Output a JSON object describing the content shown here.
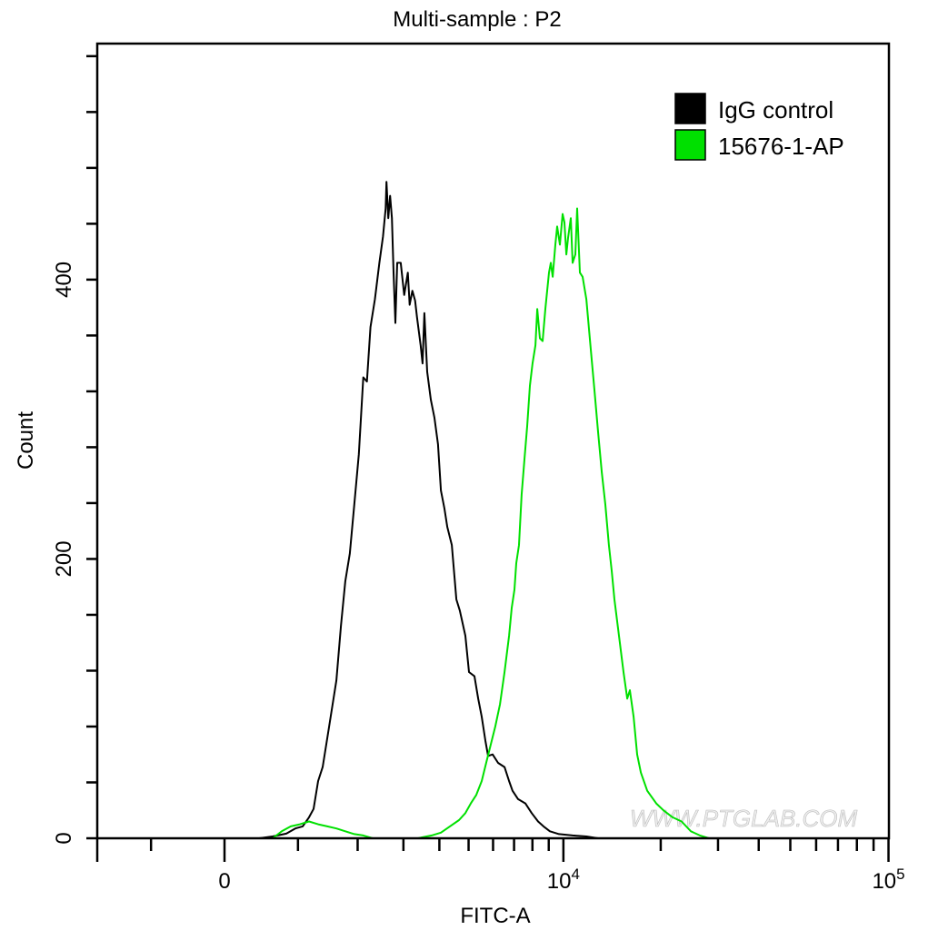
{
  "chart_data": {
    "type": "line",
    "title": "Multi-sample : P2",
    "xlabel": "FITC-A",
    "ylabel": "Count",
    "x_scale": "biexponential",
    "xlim": [
      -1880,
      100000
    ],
    "ylim": [
      0,
      569
    ],
    "x_ticks": [
      {
        "value": 0,
        "label": "0"
      },
      {
        "value": 10000,
        "label": "10",
        "sup": "4"
      },
      {
        "value": 100000,
        "label": "10",
        "sup": "5"
      }
    ],
    "x_minor_ticks": [
      -1000,
      1000,
      2000,
      3000,
      4000,
      5000,
      6000,
      7000,
      8000,
      9000,
      20000,
      30000,
      40000,
      50000,
      60000,
      70000,
      80000,
      90000
    ],
    "y_ticks": [
      {
        "value": 0,
        "label": "0"
      },
      {
        "value": 200,
        "label": "200"
      },
      {
        "value": 400,
        "label": "400"
      }
    ],
    "y_minor_ticks": [
      40,
      80,
      120,
      160,
      240,
      280,
      320,
      360,
      440,
      480,
      520,
      560
    ],
    "grid": false,
    "legend_position": "top-right",
    "watermark": "WWW.PTGLAB.COM",
    "series": [
      {
        "name": "IgG control",
        "color": "#000000",
        "points": [
          [
            454,
            0
          ],
          [
            640,
            1.3
          ],
          [
            830,
            3.3
          ],
          [
            961,
            7
          ],
          [
            1070,
            8.5
          ],
          [
            1167,
            15
          ],
          [
            1238,
            21
          ],
          [
            1310,
            41
          ],
          [
            1383,
            51
          ],
          [
            1490,
            80
          ],
          [
            1613,
            113
          ],
          [
            1693,
            152
          ],
          [
            1771,
            184
          ],
          [
            1854,
            204
          ],
          [
            1937,
            239
          ],
          [
            2024,
            275
          ],
          [
            2111,
            330
          ],
          [
            2183,
            327
          ],
          [
            2256,
            366
          ],
          [
            2348,
            386
          ],
          [
            2443,
            412
          ],
          [
            2522,
            431
          ],
          [
            2581,
            451
          ],
          [
            2600,
            470
          ],
          [
            2640,
            444
          ],
          [
            2681,
            460
          ],
          [
            2723,
            444
          ],
          [
            2762,
            405
          ],
          [
            2804,
            369
          ],
          [
            2847,
            412
          ],
          [
            2934,
            412
          ],
          [
            3020,
            389
          ],
          [
            3111,
            405
          ],
          [
            3157,
            382
          ],
          [
            3229,
            392
          ],
          [
            3301,
            385
          ],
          [
            3351,
            373
          ],
          [
            3452,
            353
          ],
          [
            3504,
            340
          ],
          [
            3555,
            376
          ],
          [
            3635,
            334
          ],
          [
            3742,
            314
          ],
          [
            3851,
            301
          ],
          [
            3959,
            282
          ],
          [
            4047,
            249
          ],
          [
            4160,
            236
          ],
          [
            4251,
            223
          ],
          [
            4402,
            210
          ],
          [
            4557,
            171
          ],
          [
            4681,
            163
          ],
          [
            4881,
            145
          ],
          [
            5014,
            119
          ],
          [
            5226,
            116
          ],
          [
            5371,
            100
          ],
          [
            5515,
            87
          ],
          [
            5668,
            70
          ],
          [
            5782,
            59
          ],
          [
            5980,
            60
          ],
          [
            6228,
            54
          ],
          [
            6527,
            51
          ],
          [
            6748,
            41
          ],
          [
            6924,
            34
          ],
          [
            7208,
            28
          ],
          [
            7598,
            25
          ],
          [
            7958,
            18
          ],
          [
            8334,
            12
          ],
          [
            8670,
            8.5
          ],
          [
            9073,
            5
          ],
          [
            9686,
            3
          ],
          [
            10683,
            2
          ],
          [
            11782,
            1.3
          ],
          [
            12815,
            0
          ]
        ]
      },
      {
        "name": "15676-1-AP",
        "color": "#00e000",
        "points": [
          [
            640,
            0
          ],
          [
            766,
            5
          ],
          [
            895,
            8.5
          ],
          [
            1029,
            10
          ],
          [
            1167,
            12
          ],
          [
            1310,
            10
          ],
          [
            1459,
            8.5
          ],
          [
            1613,
            7
          ],
          [
            1771,
            5
          ],
          [
            1937,
            3
          ],
          [
            2111,
            2
          ],
          [
            2301,
            0
          ],
          [
            3380,
            0
          ],
          [
            3506,
            0.7
          ],
          [
            3767,
            2
          ],
          [
            4047,
            4
          ],
          [
            4340,
            8.5
          ],
          [
            4651,
            13
          ],
          [
            4881,
            18
          ],
          [
            5083,
            25
          ],
          [
            5298,
            31
          ],
          [
            5515,
            41
          ],
          [
            5703,
            54
          ],
          [
            5898,
            67
          ],
          [
            6100,
            80
          ],
          [
            6313,
            96
          ],
          [
            6527,
            119
          ],
          [
            6748,
            145
          ],
          [
            6882,
            165
          ],
          [
            7018,
            178
          ],
          [
            7113,
            197
          ],
          [
            7254,
            210
          ],
          [
            7398,
            246
          ],
          [
            7552,
            272
          ],
          [
            7701,
            295
          ],
          [
            7852,
            324
          ],
          [
            8007,
            340
          ],
          [
            8174,
            353
          ],
          [
            8282,
            379
          ],
          [
            8445,
            358
          ],
          [
            8611,
            356
          ],
          [
            8780,
            379
          ],
          [
            9016,
            405
          ],
          [
            9133,
            412
          ],
          [
            9258,
            402
          ],
          [
            9439,
            425
          ],
          [
            9562,
            438
          ],
          [
            9753,
            425
          ],
          [
            9943,
            447
          ],
          [
            10074,
            441
          ],
          [
            10212,
            418
          ],
          [
            10343,
            430
          ],
          [
            10548,
            444
          ],
          [
            10683,
            412
          ],
          [
            10891,
            418
          ],
          [
            11039,
            451
          ],
          [
            11254,
            405
          ],
          [
            11476,
            402
          ],
          [
            11782,
            386
          ],
          [
            12164,
            350
          ],
          [
            12487,
            321
          ],
          [
            12815,
            291
          ],
          [
            13155,
            262
          ],
          [
            13498,
            239
          ],
          [
            13841,
            210
          ],
          [
            14127,
            191
          ],
          [
            14397,
            171
          ],
          [
            14869,
            145
          ],
          [
            15360,
            119
          ],
          [
            15767,
            100
          ],
          [
            16070,
            106
          ],
          [
            16498,
            87
          ],
          [
            16920,
            60
          ],
          [
            17370,
            47
          ],
          [
            18170,
            34
          ],
          [
            19370,
            25
          ],
          [
            20390,
            20
          ],
          [
            21750,
            15
          ],
          [
            23190,
            12
          ],
          [
            24760,
            5
          ],
          [
            26390,
            2
          ],
          [
            28140,
            0
          ]
        ]
      }
    ]
  }
}
